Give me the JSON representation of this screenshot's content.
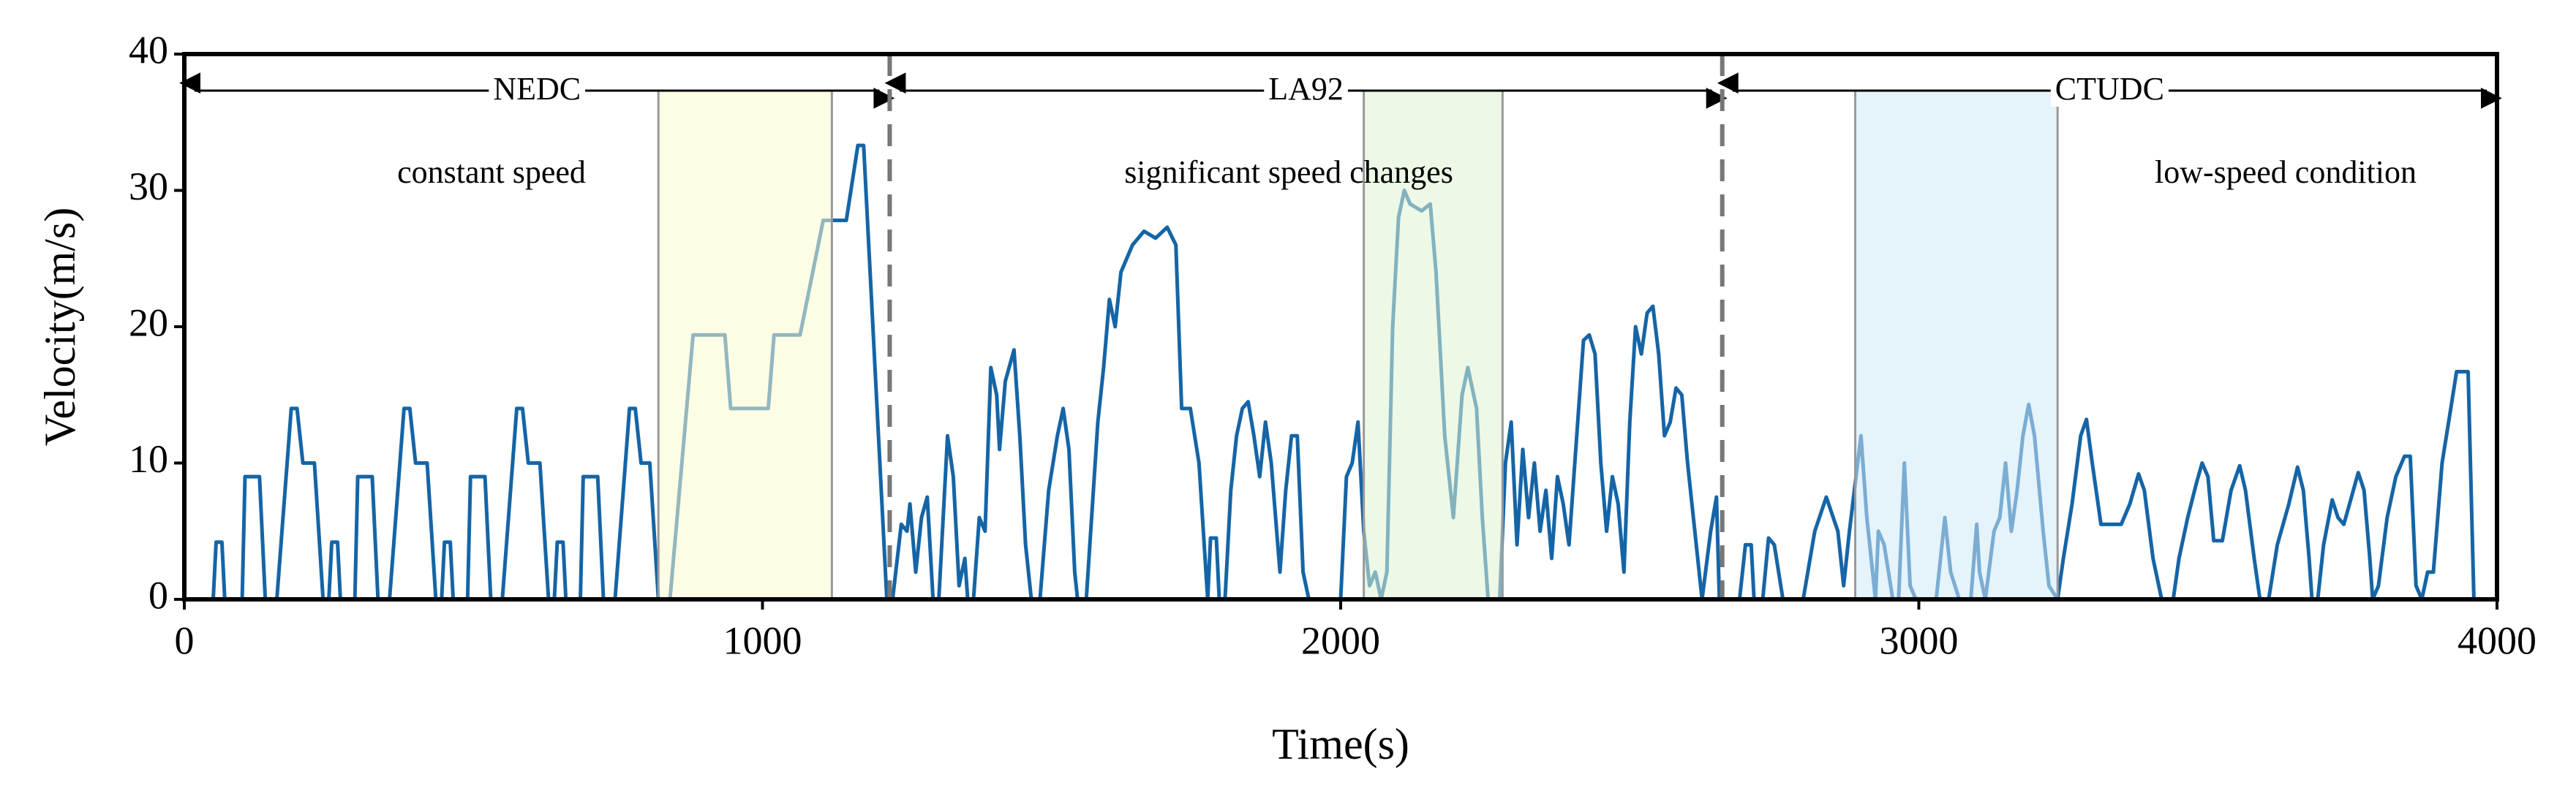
{
  "chart_data": {
    "type": "line",
    "xlabel": "Time(s)",
    "ylabel": "Velocity(m/s)",
    "xlim": [
      0,
      4000
    ],
    "ylim": [
      0,
      40
    ],
    "xticks": [
      0,
      1000,
      2000,
      3000,
      4000
    ],
    "yticks": [
      0,
      10,
      20,
      30,
      40
    ],
    "segments": [
      {
        "name": "NEDC",
        "start": 0,
        "end": 1220,
        "description": "constant speed"
      },
      {
        "name": "LA92",
        "start": 1220,
        "end": 2660,
        "description": "significant speed changes"
      },
      {
        "name": "CTUDC",
        "start": 2660,
        "end": 4000,
        "description": "low-speed condition"
      }
    ],
    "regions": [
      {
        "x0": 820,
        "x1": 1120,
        "color": "#fbfbd2"
      },
      {
        "x0": 2040,
        "x1": 2280,
        "color": "#dff3d3"
      },
      {
        "x0": 2890,
        "x1": 3240,
        "color": "#cfe9f7"
      }
    ],
    "x": [
      0,
      50,
      55,
      65,
      70,
      100,
      105,
      130,
      140,
      160,
      185,
      195,
      205,
      225,
      240,
      250,
      255,
      265,
      270,
      295,
      300,
      325,
      335,
      355,
      380,
      390,
      400,
      420,
      435,
      445,
      450,
      460,
      465,
      490,
      495,
      520,
      530,
      550,
      575,
      585,
      595,
      615,
      630,
      640,
      645,
      655,
      660,
      685,
      690,
      715,
      725,
      745,
      770,
      780,
      790,
      805,
      820,
      840,
      880,
      935,
      945,
      1010,
      1020,
      1065,
      1105,
      1145,
      1165,
      1175,
      1215,
      1225,
      1240,
      1250,
      1255,
      1265,
      1275,
      1285,
      1295,
      1305,
      1320,
      1330,
      1340,
      1350,
      1355,
      1365,
      1375,
      1385,
      1395,
      1405,
      1410,
      1420,
      1435,
      1445,
      1455,
      1465,
      1480,
      1495,
      1510,
      1520,
      1530,
      1540,
      1545,
      1560,
      1580,
      1590,
      1600,
      1610,
      1620,
      1640,
      1660,
      1680,
      1700,
      1715,
      1725,
      1740,
      1755,
      1770,
      1775,
      1785,
      1790,
      1800,
      1810,
      1820,
      1830,
      1840,
      1850,
      1860,
      1870,
      1880,
      1895,
      1905,
      1915,
      1925,
      1935,
      1945,
      2000,
      2010,
      2020,
      2030,
      2040,
      2050,
      2060,
      2070,
      2080,
      2090,
      2100,
      2110,
      2120,
      2140,
      2155,
      2165,
      2180,
      2195,
      2210,
      2220,
      2235,
      2245,
      2255,
      2275,
      2285,
      2295,
      2305,
      2315,
      2325,
      2335,
      2345,
      2355,
      2365,
      2375,
      2385,
      2395,
      2410,
      2420,
      2430,
      2440,
      2450,
      2460,
      2470,
      2480,
      2490,
      2500,
      2510,
      2520,
      2530,
      2540,
      2550,
      2560,
      2570,
      2580,
      2590,
      2600,
      2615,
      2625,
      2640,
      2650,
      2655,
      2665,
      2690,
      2700,
      2710,
      2715,
      2730,
      2740,
      2750,
      2765,
      2800,
      2820,
      2840,
      2860,
      2870,
      2880,
      2900,
      2910,
      2925,
      2930,
      2940,
      2955,
      2965,
      2975,
      2985,
      2995,
      3030,
      3045,
      3055,
      3070,
      3090,
      3100,
      3105,
      3115,
      3130,
      3140,
      3150,
      3160,
      3170,
      3180,
      3190,
      3200,
      3215,
      3225,
      3240,
      3250,
      3265,
      3280,
      3290,
      3300,
      3315,
      3350,
      3365,
      3380,
      3390,
      3405,
      3420,
      3440,
      3450,
      3465,
      3480,
      3490,
      3500,
      3510,
      3525,
      3540,
      3555,
      3565,
      3580,
      3590,
      3605,
      3620,
      3640,
      3655,
      3665,
      3675,
      3680,
      3690,
      3700,
      3715,
      3725,
      3735,
      3745,
      3760,
      3770,
      3780,
      3785,
      3795,
      3810,
      3825,
      3840,
      3850,
      3860,
      3870,
      3880,
      3890,
      3905,
      3920,
      3930,
      3950,
      3960,
      4000
    ],
    "series": [
      {
        "color": "#1565a6",
        "values": [
          0,
          0,
          4.2,
          4.2,
          0,
          0,
          9,
          9,
          0,
          0,
          14,
          14,
          10,
          10,
          0,
          0,
          4.2,
          4.2,
          0,
          0,
          9,
          9,
          0,
          0,
          14,
          14,
          10,
          10,
          0,
          0,
          4.2,
          4.2,
          0,
          0,
          9,
          9,
          0,
          0,
          14,
          14,
          10,
          10,
          0,
          0,
          4.2,
          4.2,
          0,
          0,
          9,
          9,
          0,
          0,
          14,
          14,
          10,
          10,
          0,
          0,
          19.4,
          19.4,
          14,
          14,
          19.4,
          19.4,
          27.8,
          27.8,
          33.3,
          33.3,
          0,
          0,
          5.5,
          5,
          7,
          2,
          6,
          7.5,
          0,
          0,
          12,
          9,
          1,
          3,
          0,
          0,
          6,
          5,
          17,
          15,
          11,
          16,
          18.3,
          12,
          4,
          0,
          0,
          8,
          12,
          14,
          11,
          2,
          0,
          0,
          13,
          17,
          22,
          20,
          24,
          26,
          27,
          26.5,
          27.3,
          26,
          14,
          14,
          10,
          0,
          4.5,
          4.5,
          0,
          0,
          8,
          12,
          14,
          14.5,
          12,
          9,
          13,
          10,
          2,
          8,
          12,
          12,
          2,
          0,
          0,
          9,
          10,
          13,
          5,
          1,
          2,
          0,
          2,
          20,
          28,
          30,
          29,
          28.5,
          29,
          24,
          12,
          6,
          15,
          17,
          14,
          6,
          0,
          0,
          10,
          13,
          4,
          11,
          6,
          10,
          5,
          8,
          3,
          9,
          7,
          4,
          13,
          19,
          19.4,
          18,
          10,
          5,
          9,
          7,
          2,
          13,
          20,
          18,
          21,
          21.5,
          18,
          12,
          13,
          15.5,
          15,
          10,
          4,
          0,
          5,
          7.5,
          0,
          0,
          0,
          4,
          4,
          0,
          0,
          4.5,
          4,
          0,
          0,
          5,
          7.5,
          5,
          1,
          5,
          12,
          6,
          0,
          5,
          4,
          0,
          0,
          10,
          1,
          0,
          0,
          6,
          2,
          0,
          0,
          5.5,
          2,
          0,
          5,
          6,
          10,
          5,
          8,
          12,
          14.3,
          12,
          5,
          1,
          0,
          3,
          7,
          12,
          13.2,
          10,
          5.5,
          5.5,
          7,
          9.2,
          8,
          3,
          0,
          0,
          3,
          6,
          8.5,
          10,
          9,
          4.3,
          4.3,
          8,
          9.8,
          8,
          3,
          0,
          0,
          4,
          7,
          9.7,
          8,
          3,
          0,
          0,
          4,
          7.3,
          6,
          5.5,
          7,
          9.3,
          8,
          3,
          0,
          1,
          6,
          9,
          10.5,
          10.5,
          1,
          0,
          2,
          2,
          10,
          14,
          16.7,
          16.7,
          0,
          0
        ]
      }
    ]
  }
}
